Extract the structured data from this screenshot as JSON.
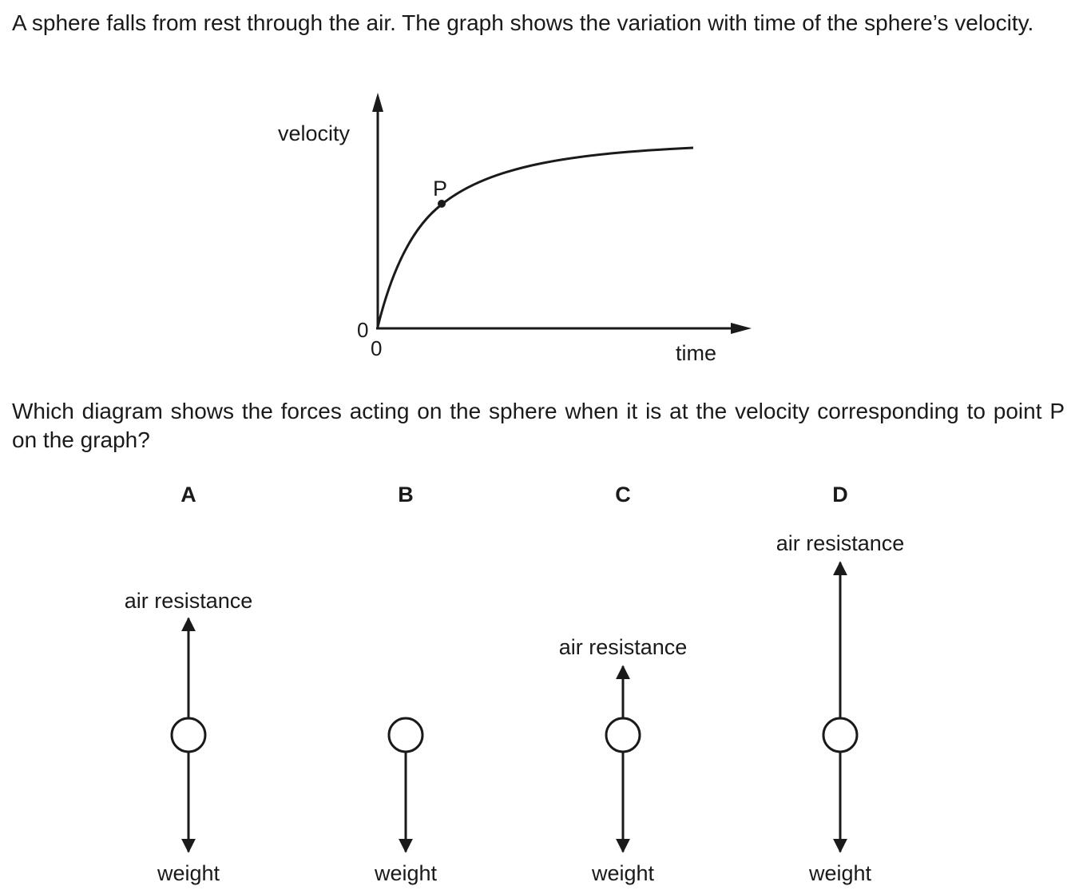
{
  "intro_text": "A sphere falls from rest through the air. The graph shows the variation with time of the sphere’s velocity.",
  "question_text": "Which diagram shows the forces acting on the sphere when it is at the velocity corresponding to point P on the graph?",
  "graph": {
    "y_axis_label": "velocity",
    "x_axis_label": "time",
    "origin_y_label": "0",
    "origin_x_label": "0",
    "point_label": "P",
    "curve": "velocity rises from 0 and levels off toward a terminal value; P marks a point on the rising part"
  },
  "options": [
    {
      "letter": "A",
      "up_force_label": "air resistance",
      "down_force_label": "weight",
      "up_length": "medium"
    },
    {
      "letter": "B",
      "up_force_label": "",
      "down_force_label": "weight",
      "up_length": "none"
    },
    {
      "letter": "C",
      "up_force_label": "air resistance",
      "down_force_label": "weight",
      "up_length": "short"
    },
    {
      "letter": "D",
      "up_force_label": "air resistance",
      "down_force_label": "weight",
      "up_length": "long"
    }
  ],
  "colors": {
    "ink": "#1a1a1a",
    "background": "#ffffff"
  }
}
